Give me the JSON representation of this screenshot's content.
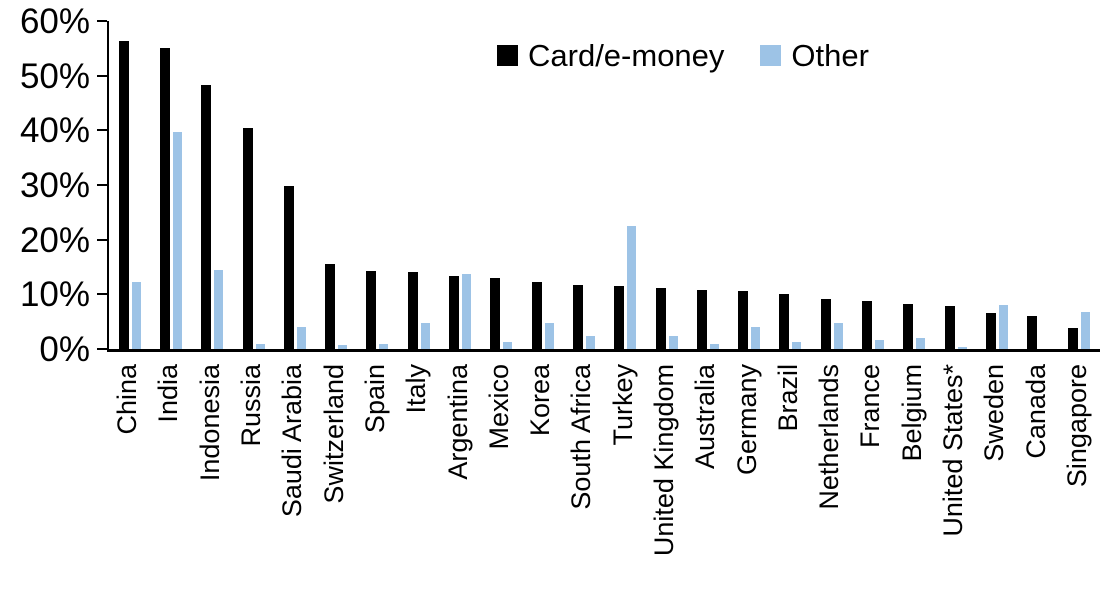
{
  "chart_data": {
    "type": "bar",
    "title": "",
    "xlabel": "",
    "ylabel": "",
    "ylim": [
      0,
      60
    ],
    "ytick_step": 10,
    "ytick_suffix": "%",
    "grid": false,
    "legend_position": "top-center",
    "categories": [
      "China",
      "India",
      "Indonesia",
      "Russia",
      "Saudi Arabia",
      "Switzerland",
      "Spain",
      "Italy",
      "Argentina",
      "Mexico",
      "Korea",
      "South Africa",
      "Turkey",
      "United Kingdom",
      "Australia",
      "Germany",
      "Brazil",
      "Netherlands",
      "France",
      "Belgium",
      "United States*",
      "Sweden",
      "Canada",
      "Singapore"
    ],
    "series": [
      {
        "name": "Card/e-money",
        "color": "#000000",
        "values": [
          56.3,
          55.0,
          48.3,
          40.4,
          29.8,
          15.6,
          14.2,
          14.1,
          13.4,
          12.9,
          12.2,
          11.8,
          11.6,
          11.1,
          10.8,
          10.6,
          10.0,
          9.2,
          8.7,
          8.2,
          7.9,
          6.6,
          6.0,
          3.9
        ]
      },
      {
        "name": "Other",
        "color": "#9DC3E6",
        "values": [
          12.3,
          39.7,
          14.5,
          1.0,
          4.0,
          0.8,
          1.0,
          4.7,
          13.8,
          1.3,
          4.7,
          2.4,
          22.5,
          2.4,
          1.0,
          4.0,
          1.2,
          4.8,
          1.6,
          2.1,
          0.3,
          8.1,
          0.0,
          6.7
        ]
      }
    ],
    "axis_color": "#000000",
    "tick_label_color": "#000000"
  }
}
